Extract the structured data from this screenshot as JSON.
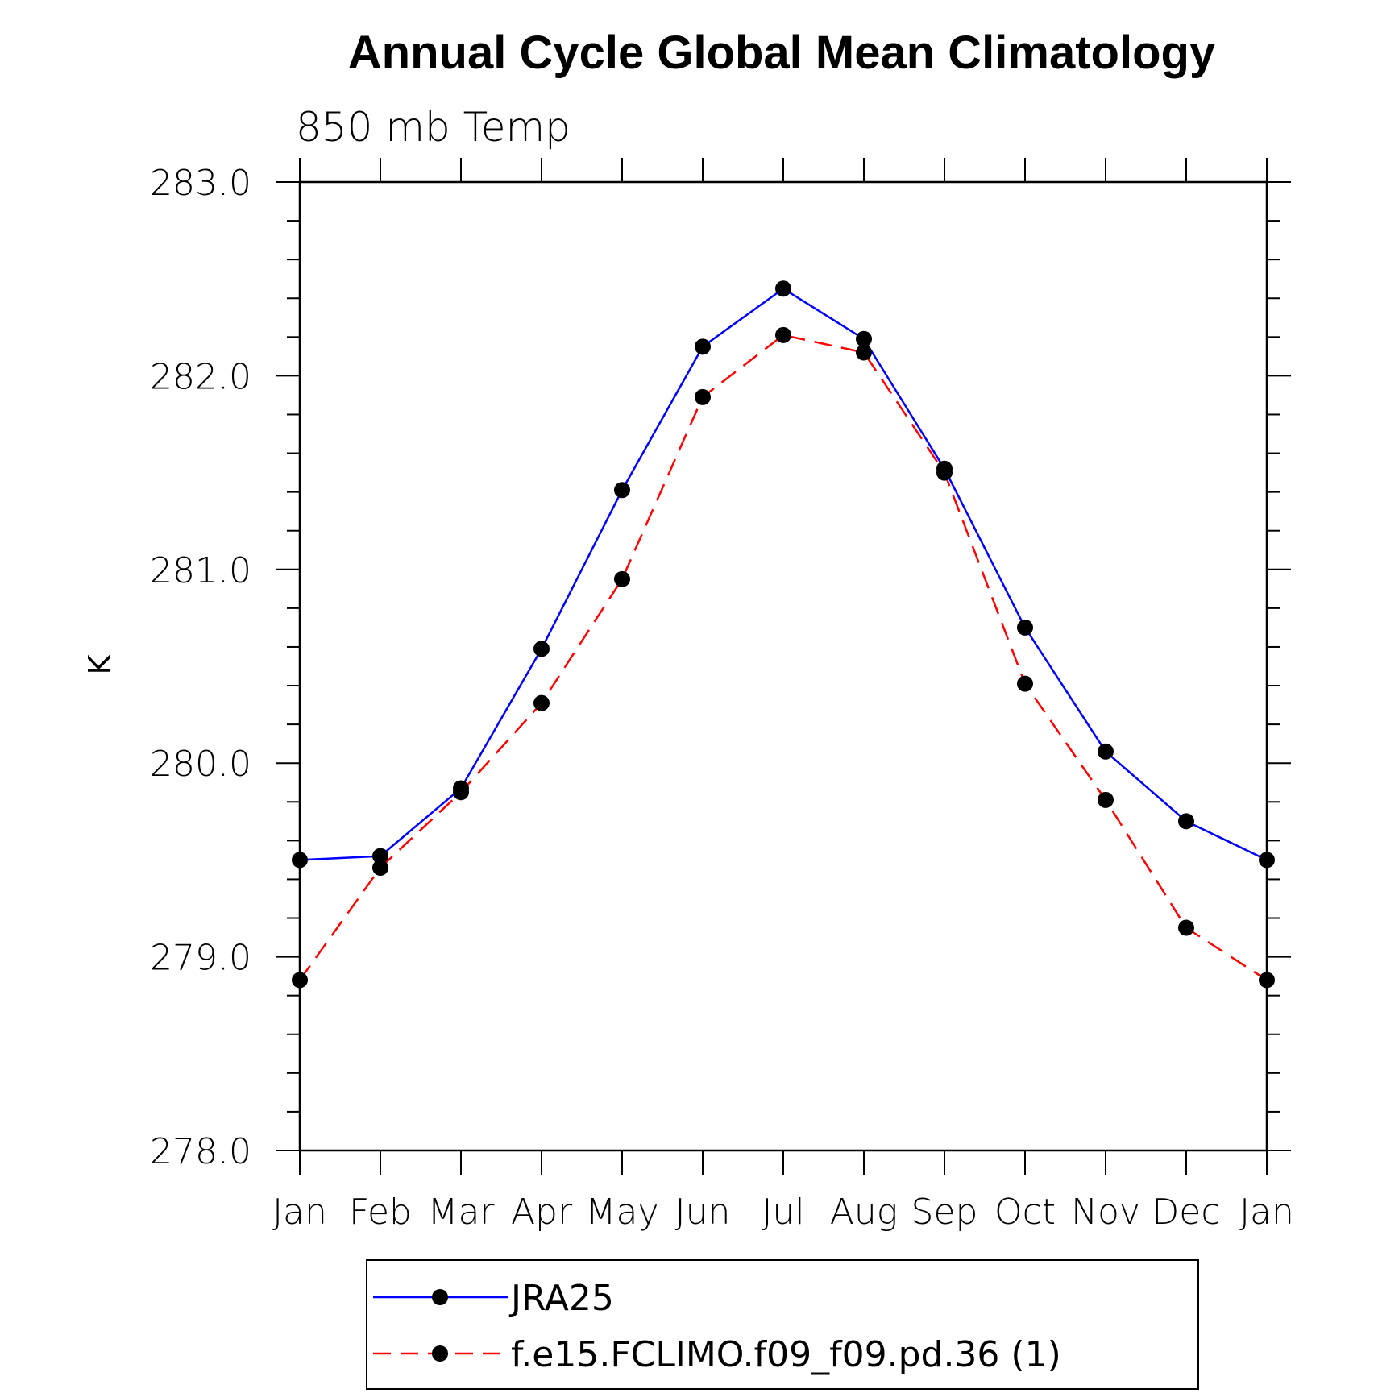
{
  "chart_data": {
    "type": "line",
    "title": "Annual Cycle Global Mean Climatology",
    "subtitle": "850 mb Temp",
    "xlabel": "",
    "ylabel": "K",
    "categories": [
      "Jan",
      "Feb",
      "Mar",
      "Apr",
      "May",
      "Jun",
      "Jul",
      "Aug",
      "Sep",
      "Oct",
      "Nov",
      "Dec",
      "Jan"
    ],
    "ylim": [
      278.0,
      283.0
    ],
    "yticks": [
      "278.0",
      "279.0",
      "280.0",
      "281.0",
      "282.0",
      "283.0"
    ],
    "y_minor_step": 0.2,
    "grid": false,
    "legend_position": "bottom",
    "series": [
      {
        "name": "JRA25",
        "color": "#0000ff",
        "style": "solid",
        "marker": "filled-circle",
        "values": [
          279.5,
          279.52,
          279.87,
          280.59,
          281.41,
          282.15,
          282.45,
          282.19,
          281.52,
          280.7,
          280.06,
          279.7,
          279.5
        ]
      },
      {
        "name": "f.e15.FCLIMO.f09_f09.pd.36 (1)",
        "color": "#ff0000",
        "style": "dashed",
        "marker": "filled-circle",
        "values": [
          278.88,
          279.46,
          279.85,
          280.31,
          280.95,
          281.89,
          282.21,
          282.12,
          281.5,
          280.41,
          279.81,
          279.15,
          278.88
        ]
      }
    ]
  }
}
